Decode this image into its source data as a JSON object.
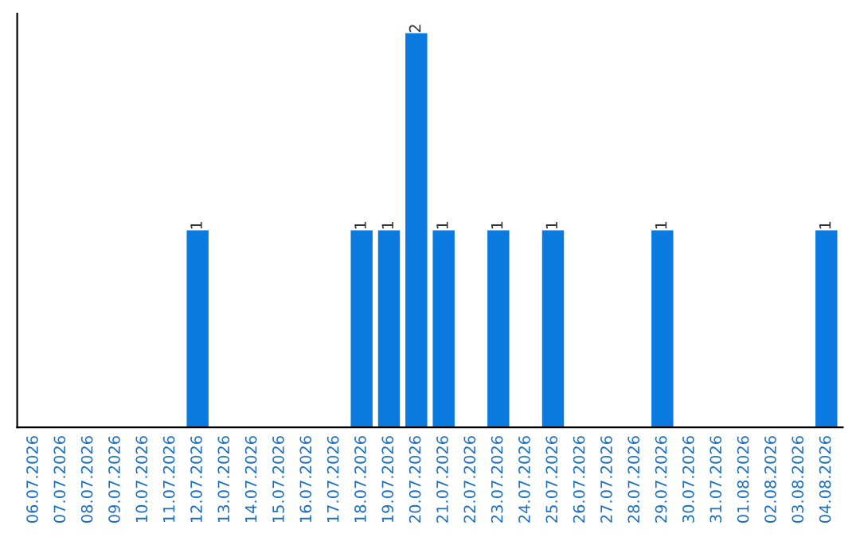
{
  "chart_data": {
    "type": "bar",
    "categories": [
      "06.07.2026",
      "07.07.2026",
      "08.07.2026",
      "09.07.2026",
      "10.07.2026",
      "11.07.2026",
      "12.07.2026",
      "13.07.2026",
      "14.07.2026",
      "15.07.2026",
      "16.07.2026",
      "17.07.2026",
      "18.07.2026",
      "19.07.2026",
      "20.07.2026",
      "21.07.2026",
      "22.07.2026",
      "23.07.2026",
      "24.07.2026",
      "25.07.2026",
      "26.07.2026",
      "27.07.2026",
      "28.07.2026",
      "29.07.2026",
      "30.07.2026",
      "31.07.2026",
      "01.08.2026",
      "02.08.2026",
      "03.08.2026",
      "04.08.2026"
    ],
    "values": [
      0,
      0,
      0,
      0,
      0,
      0,
      1,
      0,
      0,
      0,
      0,
      0,
      1,
      1,
      2,
      1,
      0,
      1,
      0,
      1,
      0,
      0,
      0,
      1,
      0,
      0,
      0,
      0,
      0,
      1
    ],
    "value_labels": [
      null,
      null,
      null,
      null,
      null,
      null,
      "1",
      null,
      null,
      null,
      null,
      null,
      "1",
      "1",
      "2",
      "1",
      null,
      "1",
      null,
      "1",
      null,
      null,
      null,
      "1",
      null,
      null,
      null,
      null,
      null,
      "1"
    ],
    "color": "#0a7ae0",
    "tick_labels": "x",
    "grid": false
  }
}
